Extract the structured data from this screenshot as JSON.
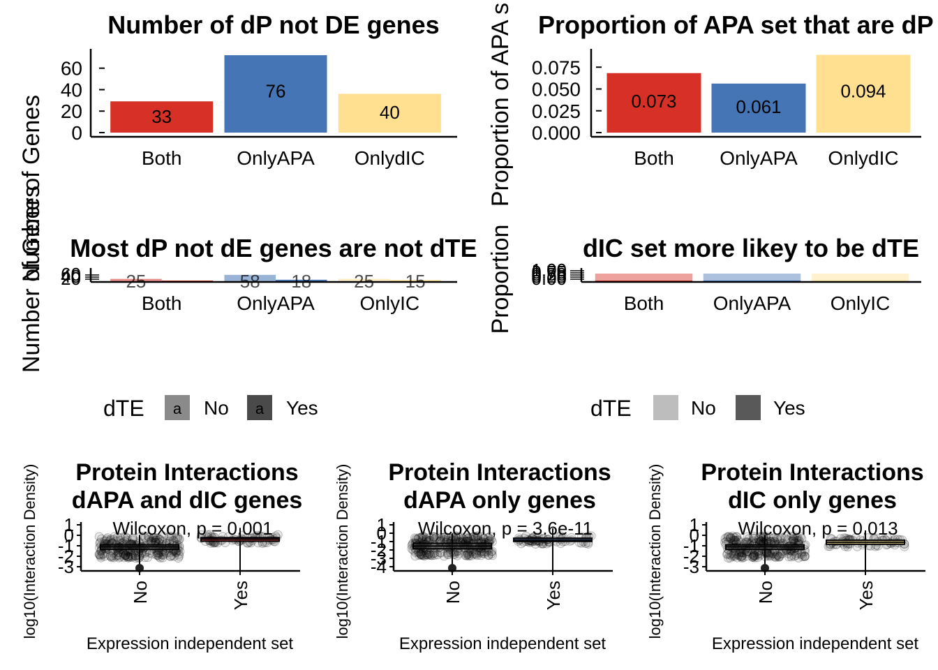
{
  "palette": {
    "Both": "#D73027",
    "OnlyAPA": "#4575B4",
    "OnlyIC": "#FEE090"
  },
  "chart_data": [
    {
      "id": "dp-not-de",
      "type": "bar",
      "title": "Number of dP not DE genes",
      "ylabel": "Number of Genes",
      "xlabel": "",
      "categories": [
        "Both",
        "OnlyAPA",
        "OnlydIC"
      ],
      "values": [
        33,
        76,
        40
      ],
      "data_labels": [
        "33",
        "76",
        "40"
      ],
      "ylim": [
        0,
        78
      ],
      "yticks": [
        "0",
        "20",
        "40",
        "60"
      ]
    },
    {
      "id": "prop-apa",
      "type": "bar",
      "title": "Proportion of APA set that are dP n",
      "ylabel": "Proportion of APA s",
      "xlabel": "",
      "categories": [
        "Both",
        "OnlyAPA",
        "OnlydIC"
      ],
      "values": [
        0.073,
        0.061,
        0.094
      ],
      "data_labels": [
        "0.073",
        "0.061",
        "0.094"
      ],
      "ylim": [
        0,
        0.096
      ],
      "yticks": [
        "0.000",
        "0.025",
        "0.050",
        "0.075"
      ]
    },
    {
      "id": "dte-count",
      "type": "bar",
      "title": "Most dP not dE genes are not dTE",
      "ylabel": "Number of Genes",
      "xlabel": "",
      "categories": [
        "Both",
        "OnlyAPA",
        "OnlyIC"
      ],
      "series": [
        {
          "name": "No",
          "values": [
            25,
            58,
            25
          ],
          "data_labels": [
            "25",
            "58",
            "25"
          ]
        },
        {
          "name": "Yes",
          "values": [
            8,
            18,
            15
          ],
          "data_labels": [
            "",
            "18",
            "15"
          ]
        }
      ],
      "yticks": [
        "20",
        "40",
        "60"
      ],
      "legend": {
        "title": "dTE",
        "items": [
          "No",
          "Yes"
        ],
        "position": "bottom"
      }
    },
    {
      "id": "dte-prop",
      "type": "bar",
      "title": "dIC set more likey to be dTE",
      "ylabel": "Proportion",
      "xlabel": "",
      "categories": [
        "Both",
        "OnlyAPA",
        "OnlyIC"
      ],
      "series": [
        {
          "name": "No",
          "values": [
            0.76,
            0.76,
            0.63
          ]
        },
        {
          "name": "Yes",
          "values": [
            0.24,
            0.24,
            0.37
          ]
        }
      ],
      "yticks": [
        "0.00",
        "0.25",
        "0.50",
        "0.75",
        "1.00"
      ],
      "legend": {
        "title": "dTE",
        "items": [
          "No",
          "Yes"
        ],
        "position": "bottom"
      }
    },
    {
      "id": "pi-both",
      "type": "box",
      "title_lines": [
        "Protein Interactions",
        "dAPA and dIC genes"
      ],
      "ylabel": "log10(Interaction Density)",
      "xlabel": "Expression independent set",
      "categories": [
        "No",
        "Yes"
      ],
      "yticks": [
        "1",
        "0",
        "-1",
        "-2",
        "-3"
      ],
      "ylim": [
        -3.5,
        1
      ],
      "stat": "Wilcoxon, p = 0.001",
      "boxes": [
        {
          "name": "No",
          "q1": -1.4,
          "median": -1.15,
          "q3": -0.95
        },
        {
          "name": "Yes",
          "q1": -0.6,
          "median": -0.4,
          "q3": -0.25
        }
      ]
    },
    {
      "id": "pi-apa",
      "type": "box",
      "title_lines": [
        "Protein Interactions",
        "dAPA only genes"
      ],
      "ylabel": "log10(Interaction Density)",
      "xlabel": "Expression independent set",
      "categories": [
        "No",
        "Yes"
      ],
      "yticks": [
        "1",
        "0",
        "-1",
        "-2",
        "-3",
        "-4"
      ],
      "ylim": [
        -4,
        1
      ],
      "stat": "Wilcoxon, p = 3.6e-11",
      "boxes": [
        {
          "name": "No",
          "q1": -1.6,
          "median": -1.3,
          "q3": -1.0
        },
        {
          "name": "Yes",
          "q1": -0.8,
          "median": -0.65,
          "q3": -0.45
        }
      ]
    },
    {
      "id": "pi-ic",
      "type": "box",
      "title_lines": [
        "Protein Interactions",
        "dIC only genes"
      ],
      "ylabel": "log10(Interaction Density)",
      "xlabel": "Expression independent set",
      "categories": [
        "No",
        "Yes"
      ],
      "yticks": [
        "1",
        "0",
        "-1",
        "-2",
        "-3"
      ],
      "ylim": [
        -3.5,
        1
      ],
      "stat": "Wilcoxon, p = 0.013",
      "boxes": [
        {
          "name": "No",
          "q1": -1.4,
          "median": -1.15,
          "q3": -0.95
        },
        {
          "name": "Yes",
          "q1": -0.9,
          "median": -0.7,
          "q3": -0.5
        }
      ]
    }
  ]
}
